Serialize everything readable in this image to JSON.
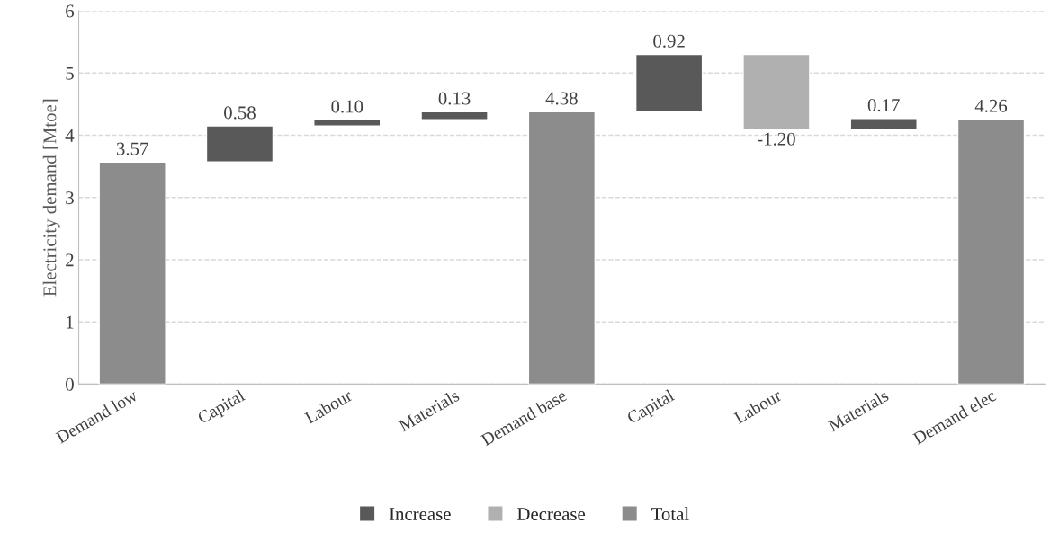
{
  "chart_data": {
    "type": "bar",
    "ylabel": "Electricity demand [Mtoe]",
    "categories": [
      "Demand low",
      "Capital",
      "Labour",
      "Materials",
      "Demand base",
      "Capital",
      "Labour",
      "Materials",
      "Demand elec"
    ],
    "series": [
      {
        "name": "Increase",
        "color": "#595959",
        "base": [
          null,
          3.57,
          4.15,
          4.25,
          null,
          4.38,
          null,
          4.1,
          null
        ],
        "values": [
          null,
          0.58,
          0.1,
          0.13,
          null,
          0.92,
          null,
          0.17,
          null
        ],
        "value_labels": [
          null,
          "0.58",
          "0.10",
          "0.13",
          null,
          "0.92",
          null,
          "0.17",
          null
        ]
      },
      {
        "name": "Decrease",
        "color": "#b0b0b0",
        "base": [
          null,
          null,
          null,
          null,
          null,
          null,
          5.3,
          null,
          null
        ],
        "values": [
          null,
          null,
          null,
          null,
          null,
          null,
          -1.2,
          null,
          null
        ],
        "value_labels": [
          null,
          null,
          null,
          null,
          null,
          null,
          "-1.20",
          null,
          null
        ]
      },
      {
        "name": "Total",
        "color": "#8c8c8c",
        "base": [
          0,
          null,
          null,
          null,
          0,
          null,
          null,
          null,
          0
        ],
        "values": [
          3.57,
          null,
          null,
          null,
          4.38,
          null,
          null,
          null,
          4.26
        ],
        "value_labels": [
          "3.57",
          null,
          null,
          null,
          "4.38",
          null,
          null,
          null,
          "4.26"
        ]
      }
    ],
    "ylim": [
      0,
      6
    ],
    "yticks": [
      0,
      1,
      2,
      3,
      4,
      5,
      6
    ],
    "grid": "y",
    "legend": "bottom"
  }
}
